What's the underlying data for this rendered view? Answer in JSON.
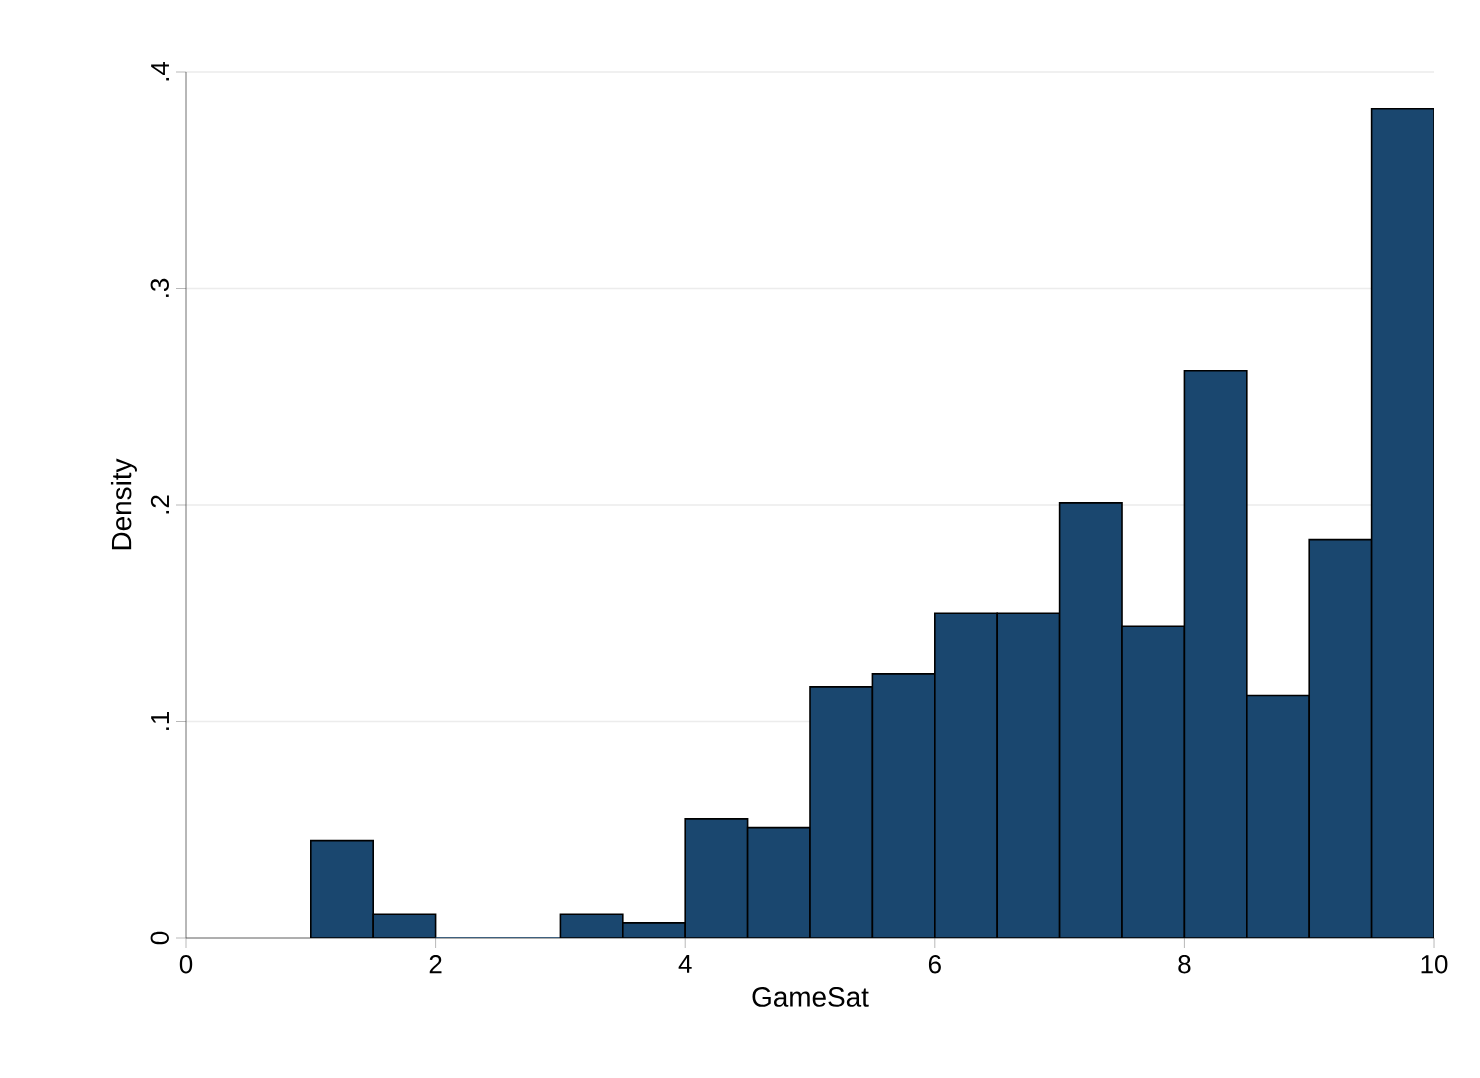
{
  "chart_data": {
    "type": "histogram",
    "xlabel": "GameSat",
    "ylabel": "Density",
    "bins": [
      1,
      1.5,
      2,
      2.5,
      3,
      3.5,
      4,
      4.5,
      5,
      5.5,
      6,
      6.5,
      7,
      7.5,
      8,
      8.5,
      9,
      9.5,
      10
    ],
    "values": [
      0.045,
      0.011,
      0,
      0,
      0.011,
      0.007,
      0.055,
      0.051,
      0.116,
      0.122,
      0.15,
      0.15,
      0.201,
      0.144,
      0.262,
      0.112,
      0.184,
      0.383
    ],
    "color": "#1a476f",
    "xlim": [
      0,
      10
    ],
    "ylim": [
      0,
      0.4
    ],
    "xticks": [
      0,
      2,
      4,
      6,
      8,
      10
    ],
    "yticks": [
      {
        "value": 0,
        "label": "0"
      },
      {
        "value": 0.1,
        "label": ".1"
      },
      {
        "value": 0.2,
        "label": ".2"
      },
      {
        "value": 0.3,
        "label": ".3"
      },
      {
        "value": 0.4,
        "label": ".4"
      }
    ],
    "grid": "y"
  }
}
